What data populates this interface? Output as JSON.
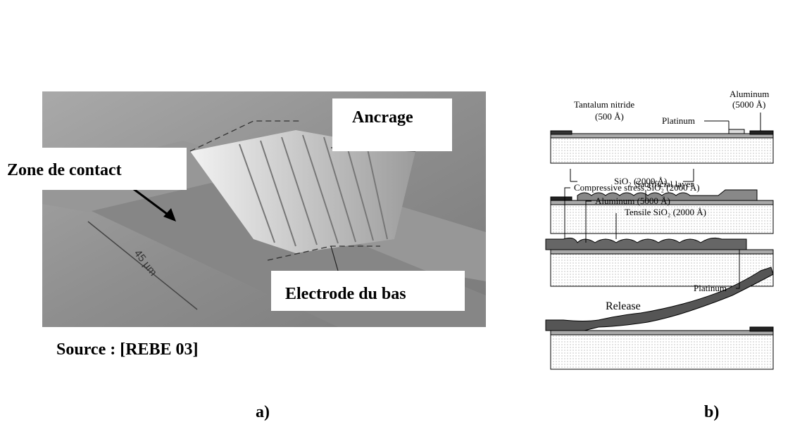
{
  "figure_a": {
    "anchor_label": "Ancrage",
    "contact_label": "Zone de contact",
    "width_label": "45 µm",
    "electrode_label": "Electrode du bas",
    "source": "Source : [REBE 03]",
    "caption": "a)"
  },
  "figure_b": {
    "step1": {
      "tantalum": "Tantalum nitride",
      "tantalum_thickness": "(500 Å)",
      "aluminum": "Aluminum",
      "aluminum_thickness": "(5000 Å)",
      "platinum": "Platinum",
      "oxide": "SiO₂ (2000 Å)"
    },
    "step2": {
      "sacrificial": "Sacrificial layer"
    },
    "step3": {
      "compressive": "Compressive stress SiO₂ (2000 Å)",
      "aluminum": "Aluminum (5000 Å)",
      "tensile": "Tensile SiO₂ (2000 Å)",
      "platinum": "Platinum"
    },
    "step4": {
      "release": "Release"
    },
    "caption": "b)"
  }
}
